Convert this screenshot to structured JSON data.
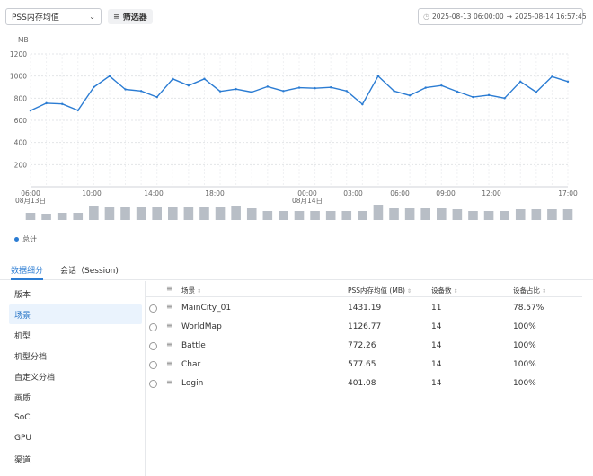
{
  "toolbar": {
    "metric_select": "PSS内存均值",
    "filter_label": "筛选器",
    "date_start": "2025-08-13 06:00:00",
    "date_arrow": "→",
    "date_end": "2025-08-14 16:57:45"
  },
  "chart_data": {
    "type": "line",
    "unit_label": "MB",
    "yticks": [
      200,
      400,
      600,
      800,
      1000,
      1200
    ],
    "ylim": [
      0,
      1200
    ],
    "xtick_labels": [
      "06:00",
      "08月13日",
      "10:00",
      "14:00",
      "18:00",
      "00:00",
      "08月14日",
      "03:00",
      "06:00",
      "09:00",
      "12:00",
      "17:00"
    ],
    "values": [
      688,
      755,
      748,
      690,
      900,
      1000,
      880,
      865,
      810,
      975,
      915,
      975,
      862,
      882,
      855,
      905,
      865,
      895,
      890,
      898,
      865,
      745,
      1000,
      865,
      825,
      895,
      915,
      860,
      810,
      828,
      800,
      950,
      855,
      995,
      950
    ],
    "volume": [
      8,
      7,
      8,
      8,
      16,
      15,
      15,
      15,
      15,
      15,
      15,
      15,
      15,
      16,
      13,
      10,
      10,
      10,
      10,
      10,
      10,
      10,
      17,
      13,
      13,
      13,
      13,
      12,
      10,
      10,
      10,
      12,
      12,
      12,
      12
    ],
    "legend": "总计",
    "colors": {
      "line": "#2b7cd3",
      "bar": "#b8bec6",
      "grid": "#e3e5e8"
    }
  },
  "tabs": [
    {
      "label": "数据细分"
    },
    {
      "label": "会话（Session)"
    }
  ],
  "sidebar": {
    "items": [
      {
        "label": "版本"
      },
      {
        "label": "场景"
      },
      {
        "label": "机型"
      },
      {
        "label": "机型分档"
      },
      {
        "label": "自定义分档"
      },
      {
        "label": "画质"
      },
      {
        "label": "SoC"
      },
      {
        "label": "GPU"
      },
      {
        "label": "渠道"
      }
    ]
  },
  "table": {
    "headers": {
      "scene": "场景",
      "pss": "PSS内存均值 (MB)",
      "devices": "设备数",
      "ratio": "设备占比"
    },
    "rows": [
      {
        "scene": "MainCity_01",
        "pss": "1431.19",
        "devices": "11",
        "ratio": "78.57%"
      },
      {
        "scene": "WorldMap",
        "pss": "1126.77",
        "devices": "14",
        "ratio": "100%"
      },
      {
        "scene": "Battle",
        "pss": "772.26",
        "devices": "14",
        "ratio": "100%"
      },
      {
        "scene": "Char",
        "pss": "577.65",
        "devices": "14",
        "ratio": "100%"
      },
      {
        "scene": "Login",
        "pss": "401.08",
        "devices": "14",
        "ratio": "100%"
      }
    ]
  }
}
